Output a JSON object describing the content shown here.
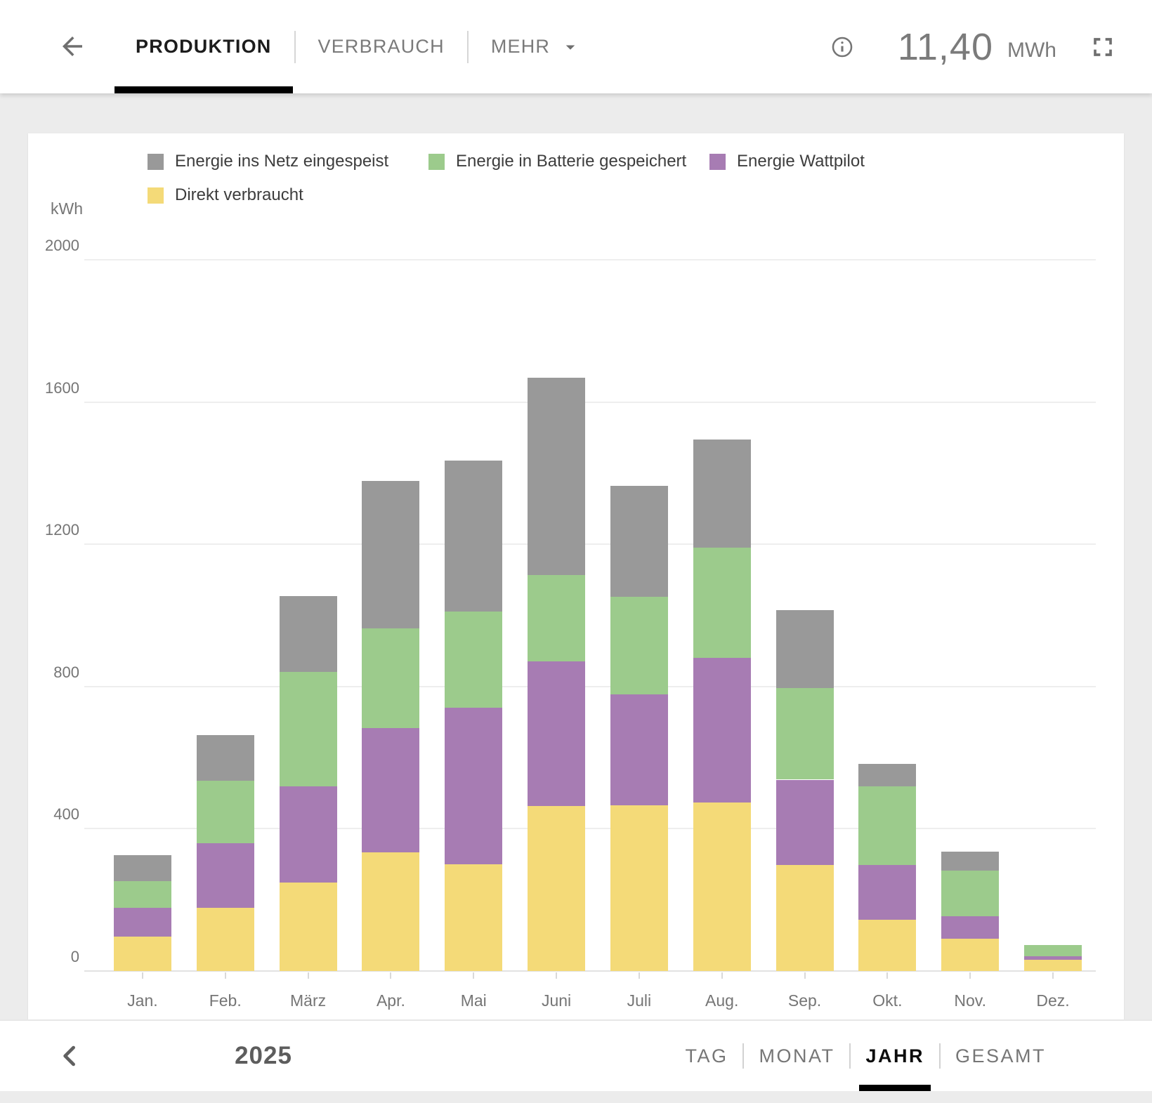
{
  "header": {
    "back_icon": "arrow-left-icon",
    "tabs": [
      {
        "label": "PRODUKTION",
        "active": true
      },
      {
        "label": "VERBRAUCH",
        "active": false
      },
      {
        "label": "MEHR",
        "active": false,
        "has_dropdown": true
      }
    ],
    "info_icon": "info-icon",
    "total_value": "11,40",
    "total_unit": "MWh",
    "fullscreen_icon": "fullscreen-icon"
  },
  "legend": [
    {
      "label": "Energie ins Netz eingespeist",
      "color": "#999999"
    },
    {
      "label": "Energie in Batterie gespeichert",
      "color": "#9CCB8C"
    },
    {
      "label": "Energie Wattpilot",
      "color": "#A77CB3"
    },
    {
      "label": "Direkt verbraucht",
      "color": "#F4DA78"
    }
  ],
  "chart_data": {
    "type": "bar",
    "stacked": true,
    "title": "",
    "xlabel": "",
    "ylabel": "kWh",
    "ylim": [
      0,
      2000
    ],
    "y_ticks": [
      0,
      400,
      800,
      1200,
      1600,
      2000
    ],
    "grid": true,
    "legend_position": "top",
    "categories": [
      "Jan.",
      "Feb.",
      "März",
      "Apr.",
      "Mai",
      "Juni",
      "Juli",
      "Aug.",
      "Sep.",
      "Okt.",
      "Nov.",
      "Dez."
    ],
    "series": [
      {
        "name": "Direkt verbraucht",
        "color": "#F4DA78",
        "values": [
          97,
          177,
          248,
          333,
          301,
          464,
          465,
          473,
          299,
          145,
          90,
          32
        ]
      },
      {
        "name": "Energie Wattpilot",
        "color": "#A77CB3",
        "values": [
          80,
          183,
          272,
          350,
          440,
          407,
          313,
          407,
          239,
          153,
          64,
          9
        ]
      },
      {
        "name": "Energie in Batterie gespeichert",
        "color": "#9CCB8C",
        "values": [
          75,
          176,
          322,
          280,
          270,
          243,
          274,
          310,
          258,
          222,
          129,
          32
        ]
      },
      {
        "name": "Energie ins Netz eingespeist",
        "color": "#999999",
        "values": [
          74,
          128,
          212,
          415,
          425,
          555,
          312,
          305,
          219,
          62,
          52,
          0
        ]
      }
    ]
  },
  "footer": {
    "prev_icon": "chevron-left-icon",
    "year": "2025",
    "range_tabs": [
      {
        "label": "TAG",
        "active": false
      },
      {
        "label": "MONAT",
        "active": false
      },
      {
        "label": "JAHR",
        "active": true
      },
      {
        "label": "GESAMT",
        "active": false
      }
    ]
  }
}
